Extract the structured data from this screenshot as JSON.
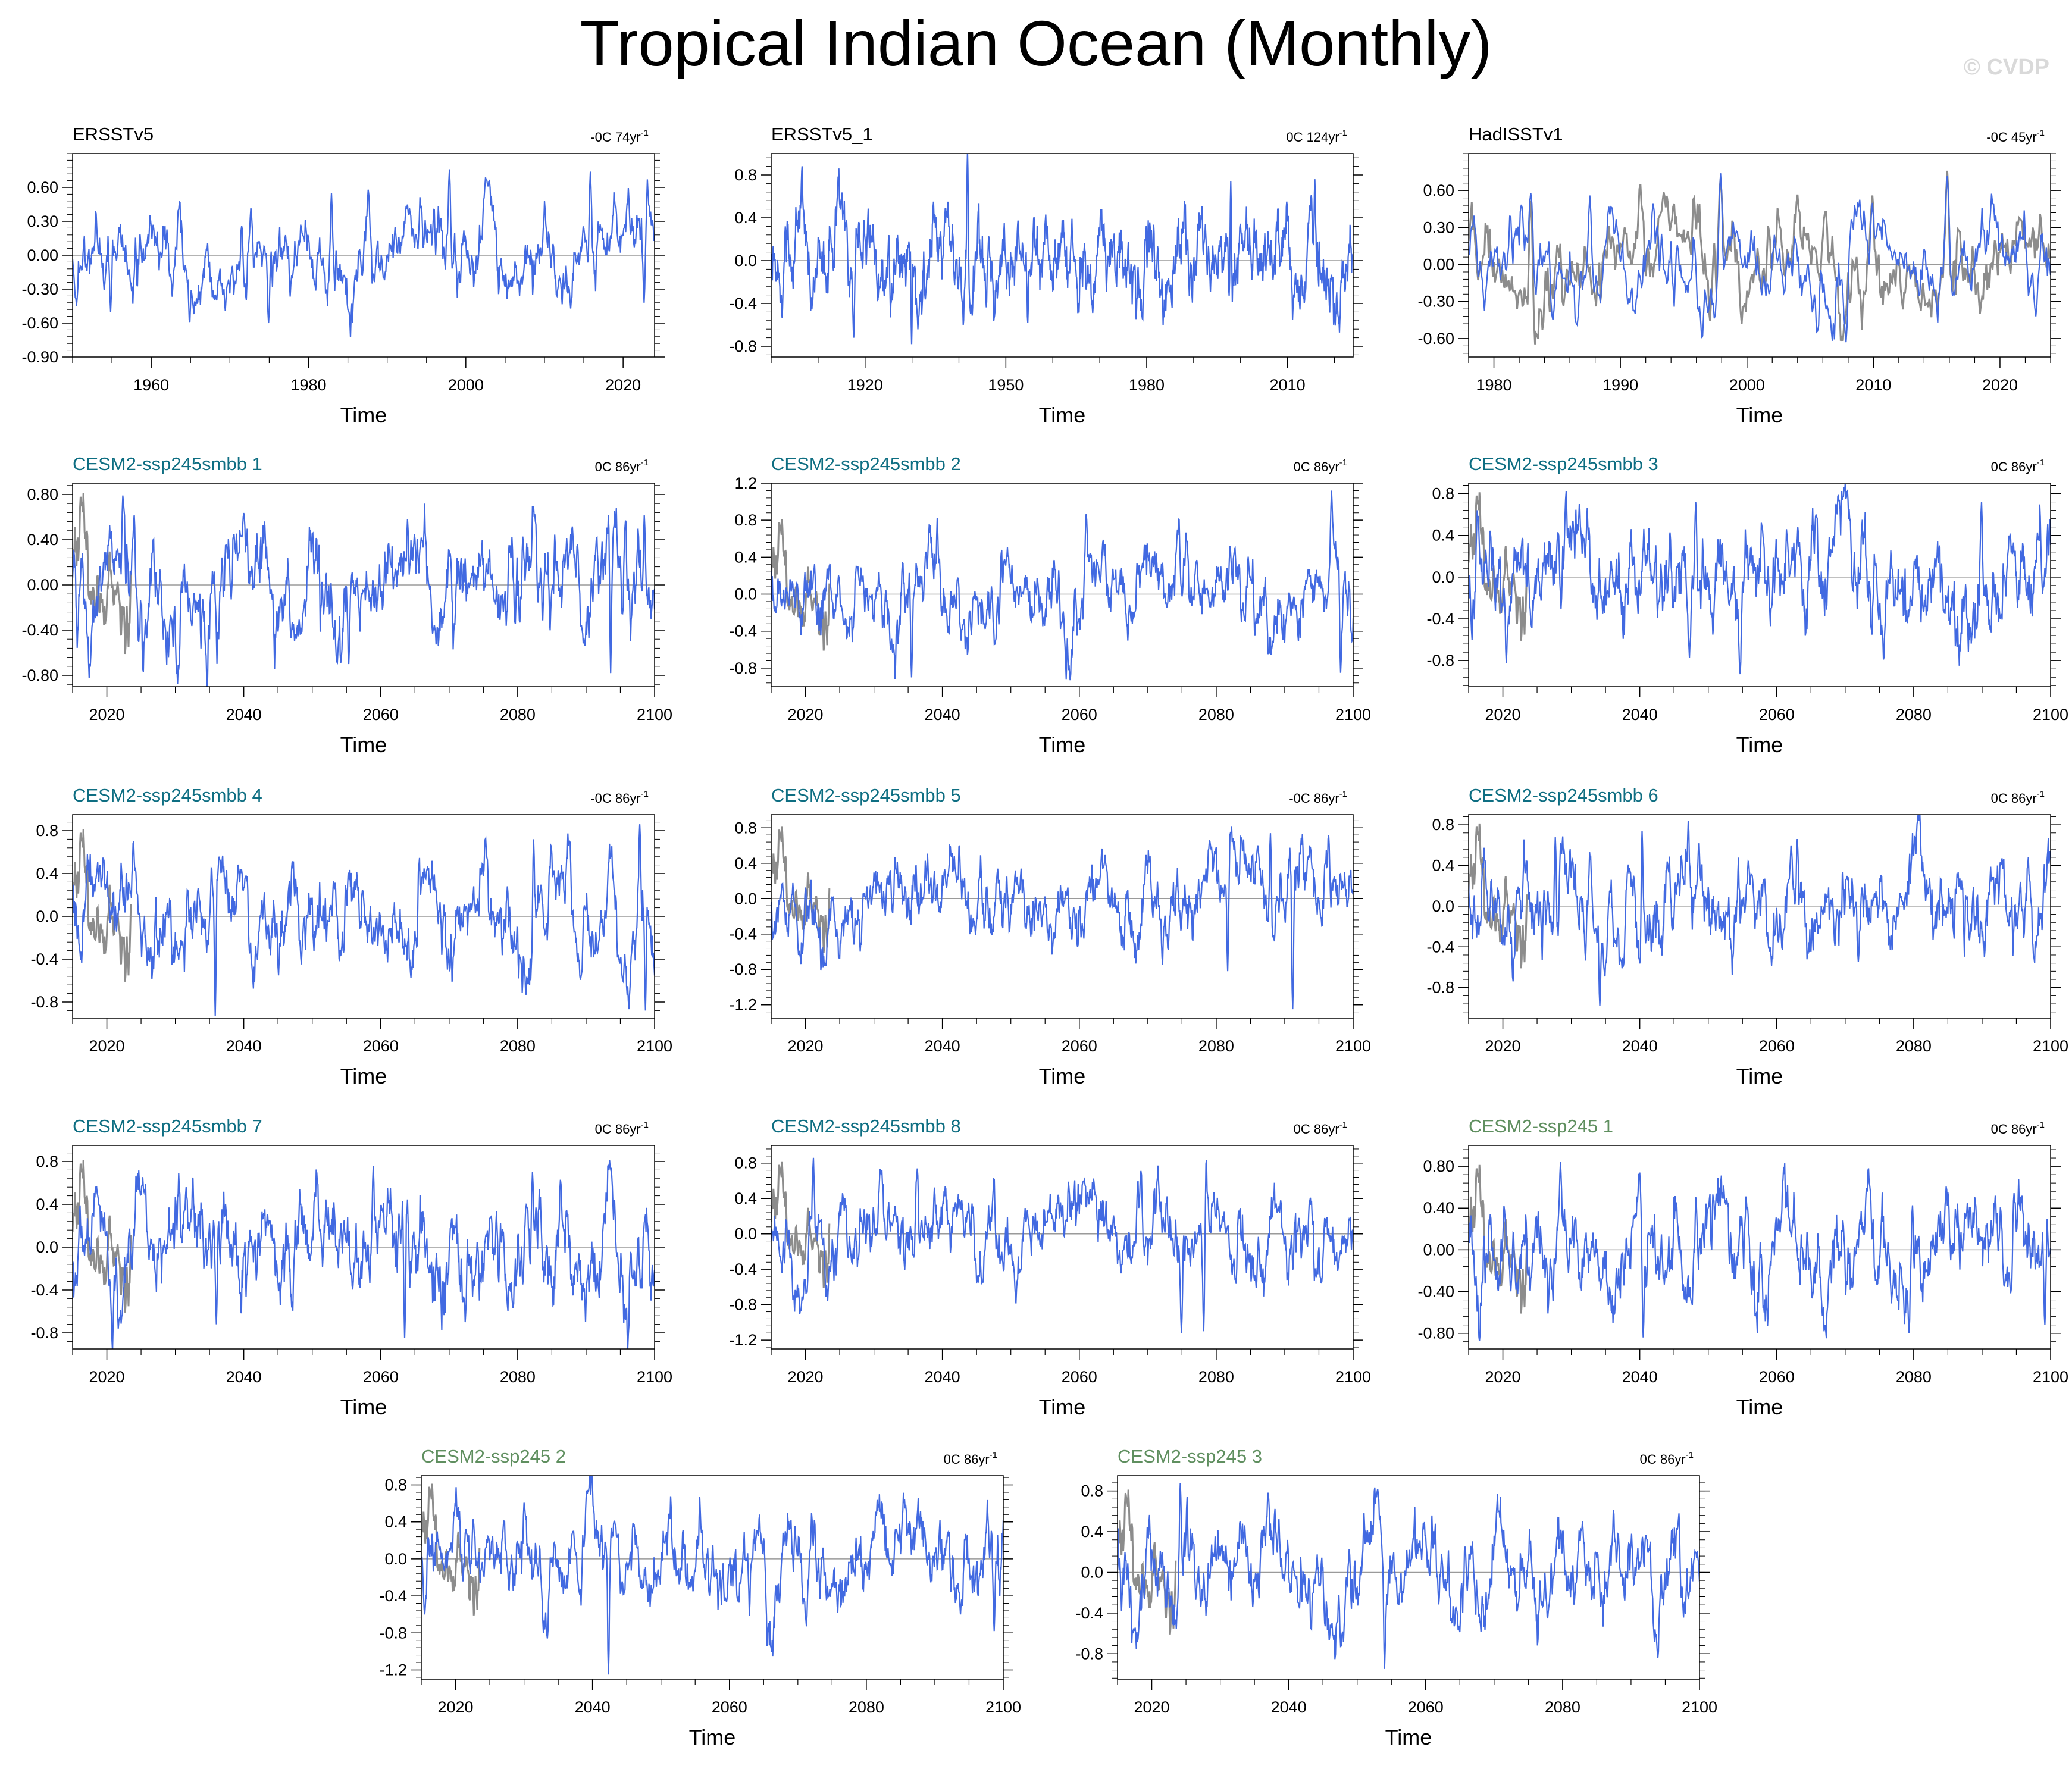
{
  "title": "Tropical Indian Ocean (Monthly)",
  "watermark": "© CVDP",
  "colors": {
    "primary": "#4169e1",
    "reference": "#8c8c8c",
    "obs_title": "#000000",
    "smbb_title": "#0e6e82",
    "ssp_title": "#5f8f5f",
    "zero_line": "#9a9a9a",
    "axis": "#000000"
  },
  "chart_data": [
    {
      "id": "p1",
      "type": "line",
      "title": "ERSSTv5",
      "title_style": "obs",
      "trend_text": "-0C 74yr",
      "trend_sup": "-1",
      "xlabel": "Time",
      "xlim": [
        1950,
        2024
      ],
      "xticks": [
        1960,
        1980,
        2000,
        2020
      ],
      "ylim": [
        -0.9,
        0.9
      ],
      "yticks": [
        0.6,
        0.3,
        0.0,
        -0.3,
        -0.6,
        -0.9
      ],
      "ytick_labels": [
        "0.60",
        "0.30",
        "0.00",
        "-0.30",
        "-0.60",
        "-0.90"
      ],
      "series": [
        {
          "name": "ERSSTv5",
          "amplitude": 0.23,
          "seed": 11,
          "peaks": [
            [
              1997.9,
              0.76
            ],
            [
              2015.8,
              0.74
            ],
            [
              1987.6,
              0.58
            ],
            [
              1982.9,
              0.55
            ],
            [
              1972.7,
              0.42
            ],
            [
              1954.8,
              -0.5
            ],
            [
              1974.9,
              -0.6
            ],
            [
              2022.7,
              -0.42
            ]
          ]
        }
      ]
    },
    {
      "id": "p2",
      "type": "line",
      "title": "ERSSTv5_1",
      "title_style": "obs",
      "trend_text": "0C 124yr",
      "trend_sup": "-1",
      "xlabel": "Time",
      "xlim": [
        1900,
        2024
      ],
      "xticks": [
        1920,
        1950,
        1980,
        2010
      ],
      "ylim": [
        -0.9,
        1.0
      ],
      "yticks": [
        0.8,
        0.4,
        0.0,
        -0.4,
        -0.8
      ],
      "ytick_labels": [
        "0.8",
        "0.4",
        "0.0",
        "-0.4",
        "-0.8"
      ],
      "series": [
        {
          "name": "ERSSTv5_1",
          "amplitude": 0.25,
          "seed": 23,
          "peaks": [
            [
              1941.8,
              1.02
            ],
            [
              2015.8,
              0.76
            ],
            [
              1997.9,
              0.74
            ],
            [
              1917.6,
              -0.72
            ],
            [
              1929.9,
              -0.78
            ],
            [
              1954.7,
              -0.58
            ]
          ]
        }
      ]
    },
    {
      "id": "p3",
      "type": "line",
      "title": "HadISSTv1",
      "title_style": "obs",
      "trend_text": "-0C 45yr",
      "trend_sup": "-1",
      "xlabel": "Time",
      "xlim": [
        1978,
        2024
      ],
      "xticks": [
        1980,
        1990,
        2000,
        2010,
        2020
      ],
      "ylim": [
        -0.75,
        0.9
      ],
      "yticks": [
        0.6,
        0.3,
        0.0,
        -0.3,
        -0.6
      ],
      "ytick_labels": [
        "0.60",
        "0.30",
        "0.00",
        "-0.30",
        "-0.60"
      ],
      "series": [
        {
          "name": "HadISSTv1",
          "amplitude": 0.22,
          "seed": 37,
          "peaks": [
            [
              1997.9,
              0.74
            ],
            [
              2015.8,
              0.72
            ],
            [
              1982.9,
              0.58
            ],
            [
              1987.6,
              0.56
            ],
            [
              2009.9,
              0.5
            ],
            [
              1984.7,
              -0.45
            ],
            [
              2007.8,
              -0.63
            ],
            [
              2022.8,
              -0.42
            ]
          ]
        },
        {
          "name": "reference",
          "amplitude": 0.24,
          "seed": 38,
          "peaks": [
            [
              1997.9,
              0.7
            ],
            [
              2015.8,
              0.76
            ],
            [
              1982.9,
              0.52
            ],
            [
              2009.9,
              0.56
            ]
          ]
        }
      ]
    },
    {
      "id": "p4",
      "type": "line",
      "title": "CESM2-ssp245smbb 1",
      "title_style": "smbb",
      "trend_text": "0C 86yr",
      "trend_sup": "-1",
      "xlabel": "Time",
      "xlim": [
        2015,
        2100
      ],
      "xticks": [
        2020,
        2040,
        2060,
        2080,
        2100
      ],
      "ylim": [
        -0.9,
        0.9
      ],
      "yticks": [
        0.8,
        0.4,
        0.0,
        -0.4,
        -0.8
      ],
      "ytick_labels": [
        "0.80",
        "0.40",
        "0.00",
        "-0.40",
        "-0.80"
      ],
      "series": [
        {
          "name": "CESM2-ssp245smbb 1",
          "amplitude": 0.3,
          "seed": 101,
          "peaks": [
            [
              2098.5,
              0.62
            ],
            [
              2055.3,
              -0.7
            ],
            [
              2093.6,
              -0.78
            ],
            [
              2024.0,
              0.62
            ]
          ]
        },
        {
          "name": "reference",
          "amplitude": 0.3,
          "seed": 900,
          "peaks": [
            [
              2016.2,
              0.78
            ]
          ]
        }
      ]
    },
    {
      "id": "p5",
      "type": "line",
      "title": "CESM2-ssp245smbb 2",
      "title_style": "smbb",
      "trend_text": "0C 86yr",
      "trend_sup": "-1",
      "xlabel": "Time",
      "xlim": [
        2015,
        2100
      ],
      "xticks": [
        2020,
        2040,
        2060,
        2080,
        2100
      ],
      "ylim": [
        -1.0,
        1.2
      ],
      "yticks": [
        1.2,
        0.8,
        0.4,
        0.0,
        -0.4,
        -0.8
      ],
      "ytick_labels": [
        "1.2",
        "0.8",
        "0.4",
        "0.0",
        "-0.4",
        "-0.8"
      ],
      "series": [
        {
          "name": "CESM2-ssp245smbb 2",
          "amplitude": 0.28,
          "seed": 102,
          "peaks": [
            [
              2096.8,
              1.12
            ],
            [
              2061.0,
              0.87
            ],
            [
              2035.5,
              -0.9
            ],
            [
              2098.2,
              -0.85
            ]
          ]
        },
        {
          "name": "reference",
          "amplitude": 0.3,
          "seed": 900,
          "peaks": [
            [
              2016.2,
              0.78
            ]
          ]
        }
      ]
    },
    {
      "id": "p6",
      "type": "line",
      "title": "CESM2-ssp245smbb 3",
      "title_style": "smbb",
      "trend_text": "0C 86yr",
      "trend_sup": "-1",
      "xlabel": "Time",
      "xlim": [
        2015,
        2100
      ],
      "xticks": [
        2020,
        2040,
        2060,
        2080,
        2100
      ],
      "ylim": [
        -1.05,
        0.9
      ],
      "yticks": [
        0.8,
        0.4,
        0.0,
        -0.4,
        -0.8
      ],
      "ytick_labels": [
        "0.8",
        "0.4",
        "0.0",
        "-0.4",
        "-0.8"
      ],
      "series": [
        {
          "name": "CESM2-ssp245smbb 3",
          "amplitude": 0.3,
          "seed": 103,
          "peaks": [
            [
              2054.7,
              -0.93
            ],
            [
              2048.2,
              0.72
            ],
            [
              2068.7,
              0.7
            ],
            [
              2089.9,
              0.72
            ]
          ]
        },
        {
          "name": "reference",
          "amplitude": 0.3,
          "seed": 900,
          "peaks": [
            [
              2016.2,
              0.78
            ]
          ]
        }
      ]
    },
    {
      "id": "p7",
      "type": "line",
      "title": "CESM2-ssp245smbb 4",
      "title_style": "smbb",
      "trend_text": "-0C 86yr",
      "trend_sup": "-1",
      "xlabel": "Time",
      "xlim": [
        2015,
        2100
      ],
      "xticks": [
        2020,
        2040,
        2060,
        2080,
        2100
      ],
      "ylim": [
        -0.95,
        0.95
      ],
      "yticks": [
        0.8,
        0.4,
        0.0,
        -0.4,
        -0.8
      ],
      "ytick_labels": [
        "0.8",
        "0.4",
        "0.0",
        "-0.4",
        "-0.8"
      ],
      "series": [
        {
          "name": "CESM2-ssp245smbb 4",
          "amplitude": 0.3,
          "seed": 104,
          "peaks": [
            [
              2097.8,
              0.86
            ],
            [
              2035.8,
              -0.93
            ],
            [
              2098.7,
              -0.88
            ],
            [
              2082.3,
              0.72
            ]
          ]
        },
        {
          "name": "reference",
          "amplitude": 0.3,
          "seed": 900,
          "peaks": [
            [
              2016.2,
              0.78
            ]
          ]
        }
      ]
    },
    {
      "id": "p8",
      "type": "line",
      "title": "CESM2-ssp245smbb 5",
      "title_style": "smbb",
      "trend_text": "-0C 86yr",
      "trend_sup": "-1",
      "xlabel": "Time",
      "xlim": [
        2015,
        2100
      ],
      "xticks": [
        2020,
        2040,
        2060,
        2080,
        2100
      ],
      "ylim": [
        -1.35,
        0.95
      ],
      "yticks": [
        0.8,
        0.4,
        0.0,
        -0.4,
        -0.8,
        -1.2
      ],
      "ytick_labels": [
        "0.8",
        "0.4",
        "0.0",
        "-0.4",
        "-0.8",
        "-1.2"
      ],
      "series": [
        {
          "name": "CESM2-ssp245smbb 5",
          "amplitude": 0.3,
          "seed": 105,
          "peaks": [
            [
              2091.2,
              -1.25
            ],
            [
              2087.9,
              0.74
            ],
            [
              2096.4,
              0.72
            ],
            [
              2081.7,
              -0.82
            ]
          ]
        },
        {
          "name": "reference",
          "amplitude": 0.3,
          "seed": 900,
          "peaks": [
            [
              2016.2,
              0.78
            ]
          ]
        }
      ]
    },
    {
      "id": "p9",
      "type": "line",
      "title": "CESM2-ssp245smbb 6",
      "title_style": "smbb",
      "trend_text": "0C 86yr",
      "trend_sup": "-1",
      "xlabel": "Time",
      "xlim": [
        2015,
        2100
      ],
      "xticks": [
        2020,
        2040,
        2060,
        2080,
        2100
      ],
      "ylim": [
        -1.1,
        0.9
      ],
      "yticks": [
        0.8,
        0.4,
        0.0,
        -0.4,
        -0.8
      ],
      "ytick_labels": [
        "0.8",
        "0.4",
        "0.0",
        "-0.4",
        "-0.8"
      ],
      "series": [
        {
          "name": "CESM2-ssp245smbb 6",
          "amplitude": 0.28,
          "seed": 106,
          "peaks": [
            [
              2034.2,
              -0.98
            ],
            [
              2040.3,
              0.74
            ],
            [
              2027.7,
              0.68
            ],
            [
              2063.0,
              0.66
            ]
          ]
        },
        {
          "name": "reference",
          "amplitude": 0.3,
          "seed": 900,
          "peaks": [
            [
              2016.2,
              0.78
            ]
          ]
        }
      ]
    },
    {
      "id": "p10",
      "type": "line",
      "title": "CESM2-ssp245smbb 7",
      "title_style": "smbb",
      "trend_text": "0C 86yr",
      "trend_sup": "-1",
      "xlabel": "Time",
      "xlim": [
        2015,
        2100
      ],
      "xticks": [
        2020,
        2040,
        2060,
        2080,
        2100
      ],
      "ylim": [
        -0.95,
        0.95
      ],
      "yticks": [
        0.8,
        0.4,
        0.0,
        -0.4,
        -0.8
      ],
      "ytick_labels": [
        "0.8",
        "0.4",
        "0.0",
        "-0.4",
        "-0.8"
      ],
      "series": [
        {
          "name": "CESM2-ssp245smbb 7",
          "amplitude": 0.3,
          "seed": 107,
          "peaks": [
            [
              2058.9,
              0.76
            ],
            [
              2063.5,
              -0.85
            ],
            [
              2036.0,
              -0.72
            ],
            [
              2082.2,
              0.7
            ]
          ]
        },
        {
          "name": "reference",
          "amplitude": 0.3,
          "seed": 900,
          "peaks": [
            [
              2016.2,
              0.78
            ]
          ]
        }
      ]
    },
    {
      "id": "p11",
      "type": "line",
      "title": "CESM2-ssp245smbb 8",
      "title_style": "smbb",
      "trend_text": "0C 86yr",
      "trend_sup": "-1",
      "xlabel": "Time",
      "xlim": [
        2015,
        2100
      ],
      "xticks": [
        2020,
        2040,
        2060,
        2080,
        2100
      ],
      "ylim": [
        -1.3,
        1.0
      ],
      "yticks": [
        0.8,
        0.4,
        0.0,
        -0.4,
        -0.8,
        -1.2
      ],
      "ytick_labels": [
        "0.8",
        "0.4",
        "0.0",
        "-0.4",
        "-0.8",
        "-1.2"
      ],
      "series": [
        {
          "name": "CESM2-ssp245smbb 8",
          "amplitude": 0.3,
          "seed": 108,
          "peaks": [
            [
              2074.9,
              -1.12
            ],
            [
              2078.2,
              -1.1
            ],
            [
              2021.2,
              0.86
            ],
            [
              2036.3,
              0.74
            ]
          ]
        },
        {
          "name": "reference",
          "amplitude": 0.3,
          "seed": 900,
          "peaks": [
            [
              2016.2,
              0.78
            ]
          ]
        }
      ]
    },
    {
      "id": "p12",
      "type": "line",
      "title": "CESM2-ssp245 1",
      "title_style": "ssp",
      "trend_text": "0C 86yr",
      "trend_sup": "-1",
      "xlabel": "Time",
      "xlim": [
        2015,
        2100
      ],
      "xticks": [
        2020,
        2040,
        2060,
        2080,
        2100
      ],
      "ylim": [
        -0.95,
        1.0
      ],
      "yticks": [
        0.8,
        0.4,
        0.0,
        -0.4,
        -0.8
      ],
      "ytick_labels": [
        "0.80",
        "0.40",
        "0.00",
        "-0.40",
        "-0.80"
      ],
      "series": [
        {
          "name": "CESM2-ssp245 1",
          "amplitude": 0.3,
          "seed": 112,
          "peaks": [
            [
              2028.4,
              0.84
            ],
            [
              2040.5,
              -0.84
            ],
            [
              2079.3,
              -0.8
            ],
            [
              2099.2,
              -0.72
            ]
          ]
        },
        {
          "name": "reference",
          "amplitude": 0.3,
          "seed": 900,
          "peaks": [
            [
              2016.2,
              0.78
            ]
          ]
        }
      ]
    },
    {
      "id": "p13",
      "type": "line",
      "title": "CESM2-ssp245 2",
      "title_style": "ssp",
      "trend_text": "0C 86yr",
      "trend_sup": "-1",
      "xlabel": "Time",
      "xlim": [
        2015,
        2100
      ],
      "xticks": [
        2020,
        2040,
        2060,
        2080,
        2100
      ],
      "ylim": [
        -1.3,
        0.9
      ],
      "yticks": [
        0.8,
        0.4,
        0.0,
        -0.4,
        -0.8,
        -1.2
      ],
      "ytick_labels": [
        "0.8",
        "0.4",
        "0.0",
        "-0.4",
        "-0.8",
        "-1.2"
      ],
      "series": [
        {
          "name": "CESM2-ssp245 2",
          "amplitude": 0.3,
          "seed": 113,
          "peaks": [
            [
              2042.3,
              -1.25
            ],
            [
              2039.2,
              0.74
            ],
            [
              2033.4,
              -0.86
            ],
            [
              2098.7,
              -0.78
            ]
          ]
        },
        {
          "name": "reference",
          "amplitude": 0.3,
          "seed": 900,
          "peaks": [
            [
              2016.2,
              0.78
            ]
          ]
        }
      ]
    },
    {
      "id": "p14",
      "type": "line",
      "title": "CESM2-ssp245 3",
      "title_style": "ssp",
      "trend_text": "0C 86yr",
      "trend_sup": "-1",
      "xlabel": "Time",
      "xlim": [
        2015,
        2100
      ],
      "xticks": [
        2020,
        2040,
        2060,
        2080,
        2100
      ],
      "ylim": [
        -1.05,
        0.95
      ],
      "yticks": [
        0.8,
        0.4,
        0.0,
        -0.4,
        -0.8
      ],
      "ytick_labels": [
        "0.8",
        "0.4",
        "0.0",
        "-0.4",
        "-0.8"
      ],
      "series": [
        {
          "name": "CESM2-ssp245 3",
          "amplitude": 0.3,
          "seed": 114,
          "peaks": [
            [
              2024.2,
              0.88
            ],
            [
              2054.0,
              -0.95
            ],
            [
              2093.9,
              -0.84
            ],
            [
              2097.0,
              0.58
            ]
          ]
        },
        {
          "name": "reference",
          "amplitude": 0.3,
          "seed": 900,
          "peaks": [
            [
              2016.2,
              0.78
            ]
          ]
        }
      ]
    }
  ]
}
